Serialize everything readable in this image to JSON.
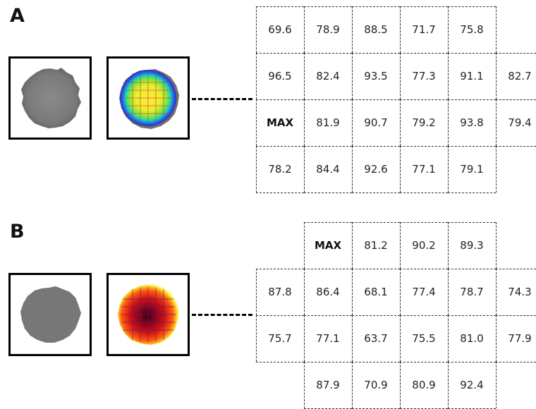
{
  "panels": [
    {
      "label": "A",
      "rows": [
        [
          "69.6",
          "78.9",
          "88.5",
          "71.7",
          "75.8"
        ],
        [
          "96.5",
          "82.4",
          "93.5",
          "77.3",
          "91.1",
          "82.7"
        ],
        [
          "MAX",
          "81.9",
          "90.7",
          "79.2",
          "93.8",
          "79.4"
        ],
        [
          "78.2",
          "84.4",
          "92.6",
          "77.1",
          "79.1"
        ]
      ],
      "heatmap_style": "rainbow"
    },
    {
      "label": "B",
      "rows": [
        [
          "MAX",
          "81.2",
          "90.2",
          "89.3"
        ],
        [
          "87.8",
          "86.4",
          "68.1",
          "77.4",
          "78.7",
          "74.3"
        ],
        [
          "75.7",
          "77.1",
          "63.7",
          "75.5",
          "81.0",
          "77.9"
        ],
        [
          "87.9",
          "70.9",
          "80.9",
          "92.4"
        ]
      ],
      "heatmap_style": "hot"
    }
  ]
}
